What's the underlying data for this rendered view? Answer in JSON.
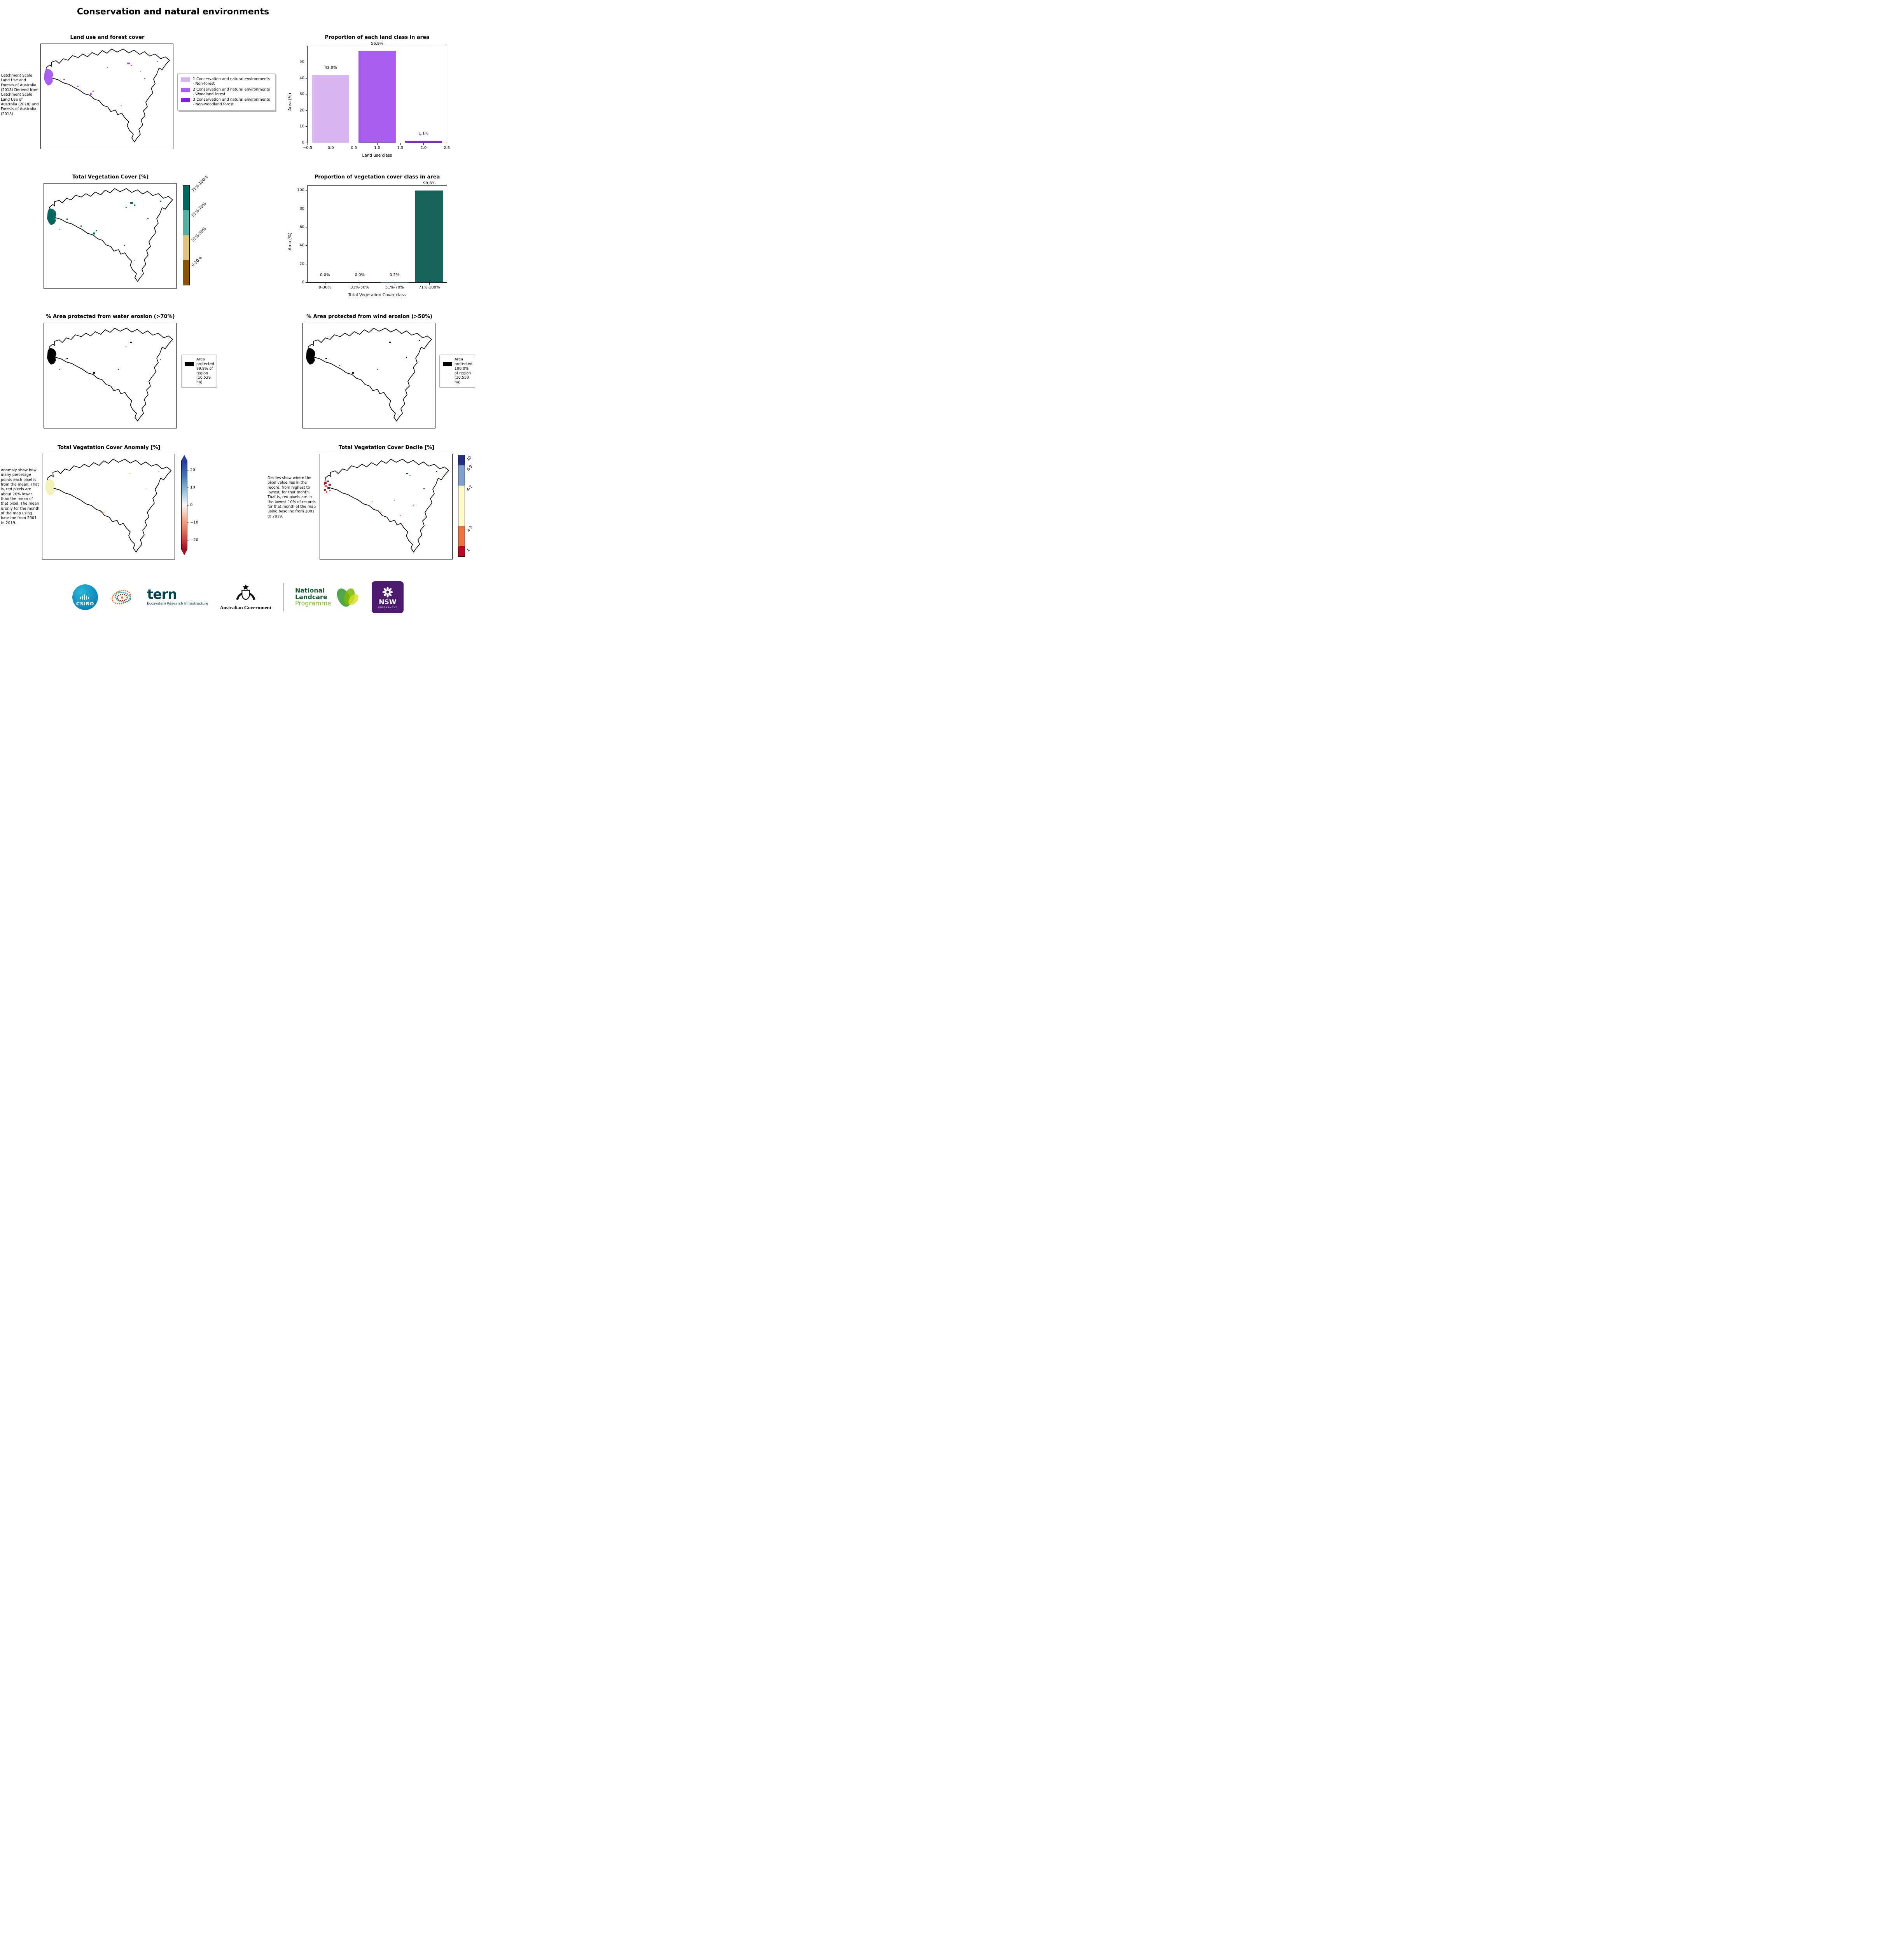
{
  "page": {
    "title": "Conservation and natural environments"
  },
  "map_colors": {
    "land_use": "#a75ded",
    "vegetation": "#01665e",
    "protected": "#000000"
  },
  "panels": {
    "land_use_map": {
      "title": "Land use and forest cover",
      "caption": "Catchment Scale Land Use and Forests of Australia (2018) Derived from Catchment Scale Land Use of Australia (2018) and Forests of Australia (2018)",
      "legend": [
        {
          "label": "1 Conservation and natural environments - Non-forest",
          "color": "#d8b4f0"
        },
        {
          "label": "2 Conservation and natural environments - Woodland forest",
          "color": "#a75ded"
        },
        {
          "label": "3 Conservation and natural environments - Non-woodland forest",
          "color": "#8327e3"
        }
      ]
    },
    "veg_cover_map": {
      "title": "Total Vegetation Cover [%]",
      "colorbar": [
        {
          "label": "71%-100%",
          "color": "#01665e",
          "pct": 25
        },
        {
          "label": "51%-70%",
          "color": "#59ada0",
          "pct": 25
        },
        {
          "label": "31%-50%",
          "color": "#dfc27d",
          "pct": 25
        },
        {
          "label": "0-30%",
          "color": "#8c510a",
          "pct": 25
        }
      ]
    },
    "water_erosion_map": {
      "title": "% Area protected from water erosion (>70%)",
      "legend_text": "Area protected 99.8% of region (10,529 ha)"
    },
    "wind_erosion_map": {
      "title": "% Area protected from wind erosion (>50%)",
      "legend_text": "Area protected 100.0% of region (10,550 ha)"
    },
    "anomaly_map": {
      "title": "Total Vegetation Cover Anomaly [%]",
      "caption": "Anomaly show how many percetage points each pixel is from the mean. That is, red pixels are about 20% lower than the mean of that pixel. The mean is only for the month of the map using baseline from 2001 to 2019.",
      "colorbar": {
        "ticks": [
          "20",
          "10",
          "0",
          "−10",
          "−20"
        ],
        "tick_pcts": [
          10,
          30,
          50,
          70,
          90
        ],
        "colors": [
          "#27409e",
          "#4575b4",
          "#92bfdb",
          "#f7f7f7",
          "#f5a886",
          "#d6604d",
          "#a50f26"
        ]
      }
    },
    "decile_map": {
      "title": "Total Vegetation Cover Decile [%]",
      "caption": "Deciles show where the pixel value lies in the record, from highest to lowest, for that month. That is, red pixels are in the lowest 10% of records for that month of the map using baseline from 2001 to 2019.",
      "colorbar": [
        {
          "label": "10",
          "color": "#23308a",
          "pct": 10
        },
        {
          "label": "8-9",
          "color": "#7f9fd1",
          "pct": 20
        },
        {
          "label": "4-7",
          "color": "#fbfbc6",
          "pct": 40
        },
        {
          "label": "2-3",
          "color": "#f3713b",
          "pct": 20
        },
        {
          "label": "1",
          "color": "#c00426",
          "pct": 10
        }
      ]
    }
  },
  "chart_data": [
    {
      "type": "bar",
      "title": "Proportion of each land class in area",
      "xlabel": "Land use class",
      "ylabel": "Area (%)",
      "x": [
        0.0,
        1.0,
        2.0
      ],
      "values": [
        42.0,
        56.9,
        1.1
      ],
      "bar_labels": [
        "42.0%",
        "56.9%",
        "1.1%"
      ],
      "colors": [
        "#d8b4f0",
        "#a75ded",
        "#8327e3"
      ],
      "bar_width": 0.8,
      "xlim": [
        -0.5,
        2.5
      ],
      "ylim": [
        0,
        59.7
      ],
      "xticks": [
        -0.5,
        0.0,
        0.5,
        1.0,
        1.5,
        2.0,
        2.5
      ],
      "yticks": [
        0,
        10,
        20,
        30,
        40,
        50
      ]
    },
    {
      "type": "bar",
      "title": "Proportion of vegetation cover class in area",
      "xlabel": "Total Vegetation Cover class",
      "ylabel": "Area (%)",
      "categories": [
        "0-30%",
        "31%-50%",
        "51%-70%",
        "71%-100%"
      ],
      "values": [
        0.0,
        0.0,
        0.2,
        99.8
      ],
      "bar_labels": [
        "0.0%",
        "0.0%",
        "0.2%",
        "99.8%"
      ],
      "color": "#17645c",
      "ylim": [
        0,
        104.8
      ],
      "yticks": [
        0,
        20,
        40,
        60,
        80,
        100
      ]
    }
  ],
  "footer": {
    "csiro": "CSIRO",
    "tern": "tern",
    "tern_sub": "Ecosystem Research Infrastructure",
    "aus_gov": "Australian Government",
    "landcare_1": "National",
    "landcare_2": "Landcare",
    "landcare_3": "Programme",
    "nsw": "NSW",
    "nsw_sub": "GOVERNMENT"
  }
}
